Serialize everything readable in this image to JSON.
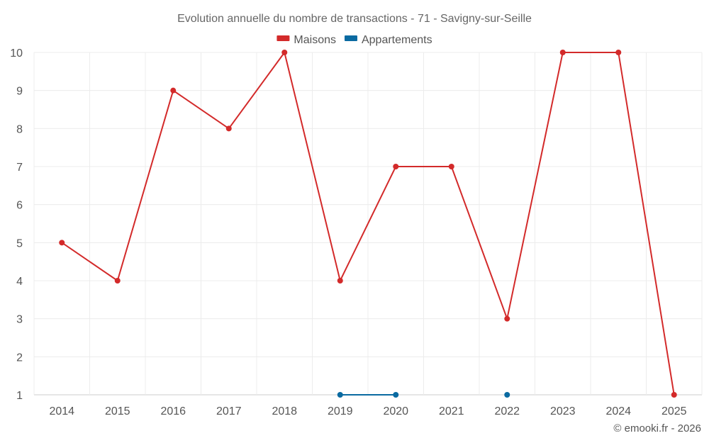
{
  "chart_data": {
    "type": "line",
    "title": "Evolution annuelle du nombre de transactions - 71 - Savigny-sur-Seille",
    "xlabel": "",
    "ylabel": "",
    "x": [
      "2014",
      "2015",
      "2016",
      "2017",
      "2018",
      "2019",
      "2020",
      "2021",
      "2022",
      "2023",
      "2024",
      "2025"
    ],
    "ylim": [
      1,
      10
    ],
    "yticks": [
      "1",
      "2",
      "3",
      "4",
      "5",
      "6",
      "7",
      "8",
      "9",
      "10"
    ],
    "grid": true,
    "legend_position": "top-center",
    "series": [
      {
        "name": "Maisons",
        "color": "#d32a2a",
        "values": [
          5,
          4,
          9,
          8,
          10,
          4,
          7,
          7,
          3,
          10,
          10,
          1
        ]
      },
      {
        "name": "Appartements",
        "color": "#0a6aa1",
        "values": [
          null,
          null,
          null,
          null,
          null,
          1,
          1,
          null,
          1,
          null,
          null,
          null
        ]
      }
    ]
  },
  "credit": "© emooki.fr - 2026"
}
